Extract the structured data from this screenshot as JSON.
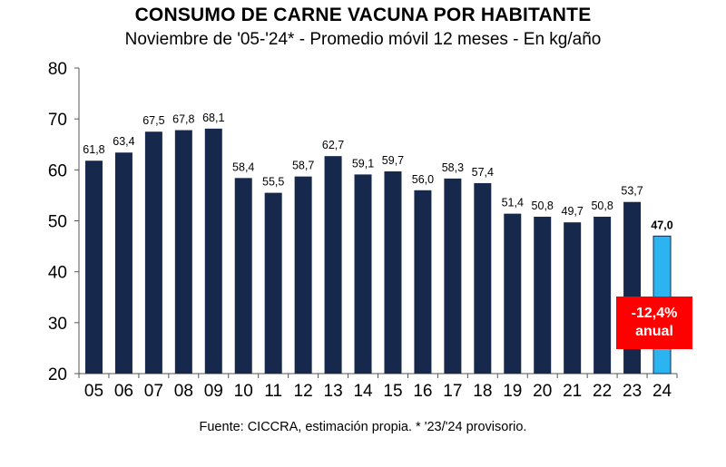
{
  "chart_data": {
    "type": "bar",
    "title": "CONSUMO DE CARNE VACUNA POR HABITANTE",
    "subtitle": "Noviembre de '05-'24* - Promedio móvil 12 meses -  En kg/año",
    "categories": [
      "05",
      "06",
      "07",
      "08",
      "09",
      "10",
      "11",
      "12",
      "13",
      "14",
      "15",
      "16",
      "17",
      "18",
      "19",
      "20",
      "21",
      "22",
      "23",
      "24"
    ],
    "values": [
      61.8,
      63.4,
      67.5,
      67.8,
      68.1,
      58.4,
      55.5,
      58.7,
      62.7,
      59.1,
      59.7,
      56.0,
      58.3,
      57.4,
      51.4,
      50.8,
      49.7,
      50.8,
      53.7,
      47.0
    ],
    "value_labels": [
      "61,8",
      "63,4",
      "67,5",
      "67,8",
      "68,1",
      "58,4",
      "55,5",
      "58,7",
      "62,7",
      "59,1",
      "59,7",
      "56,0",
      "58,3",
      "57,4",
      "51,4",
      "50,8",
      "49,7",
      "50,8",
      "53,7",
      "47,0"
    ],
    "highlight_index": 19,
    "ylim": [
      20,
      80
    ],
    "yticks": [
      20,
      30,
      40,
      50,
      60,
      70,
      80
    ],
    "grid": false,
    "xlabel": "",
    "ylabel": "",
    "colors": {
      "bar": "#17284d",
      "highlight": "#2cb4f0",
      "highlight_edge": "#1a2a4c",
      "axis": "#555555"
    },
    "annotation": {
      "line1": "-12,4%",
      "line2": "anual",
      "color": "#ff0000"
    }
  },
  "source_note": "Fuente: CICCRA, estimación propia. * '23/'24 provisorio."
}
